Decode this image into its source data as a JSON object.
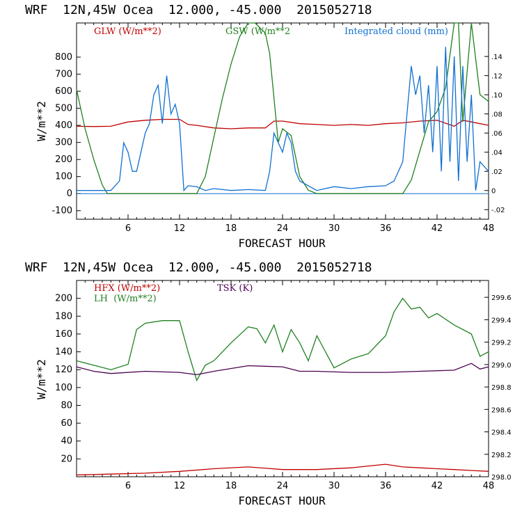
{
  "chart_data": [
    {
      "type": "line",
      "title": "WRF  12N,45W Ocea  12.000, -45.000  2015052718",
      "xlabel": "FORECAST HOUR",
      "ylabel": "W/m**2",
      "xlim": [
        0,
        48
      ],
      "ylim": [
        -150,
        1000
      ],
      "ylim_right": [
        -0.03,
        0.175
      ],
      "xticks": [
        "6",
        "12",
        "18",
        "24",
        "30",
        "36",
        "42",
        "48"
      ],
      "yticks": [
        "-100",
        "0",
        "100",
        "200",
        "300",
        "400",
        "500",
        "600",
        "700",
        "800"
      ],
      "yticks_right": [
        "-.02",
        "0",
        ".02",
        ".04",
        ".06",
        ".08",
        ".10",
        ".12",
        ".14"
      ],
      "series": [
        {
          "name": "GLW (W/m**2)",
          "color": "#c00000",
          "axis": "left",
          "x": [
            0,
            2,
            4,
            6,
            8,
            10,
            12,
            13,
            14,
            16,
            18,
            20,
            22,
            23,
            24,
            26,
            28,
            30,
            32,
            34,
            36,
            38,
            40,
            42,
            44,
            45,
            46,
            48
          ],
          "y": [
            395,
            393,
            395,
            420,
            430,
            435,
            435,
            405,
            400,
            385,
            380,
            385,
            385,
            425,
            425,
            410,
            405,
            400,
            405,
            400,
            410,
            415,
            425,
            430,
            395,
            430,
            420,
            400
          ]
        },
        {
          "name": "GSW (W/m**2",
          "color": "#208020",
          "axis": "left",
          "x": [
            0,
            1,
            2,
            3,
            3.6,
            14,
            15,
            16,
            17,
            18,
            19,
            20,
            20.8,
            22,
            22.5,
            23,
            23.5,
            24,
            25,
            26,
            27,
            28,
            38,
            39,
            40,
            41,
            42,
            43,
            44,
            44.5,
            45,
            46,
            47,
            48
          ],
          "y": [
            610,
            380,
            200,
            50,
            0,
            0,
            100,
            330,
            560,
            760,
            920,
            1000,
            1020,
            940,
            820,
            560,
            300,
            380,
            340,
            100,
            20,
            0,
            0,
            80,
            250,
            420,
            480,
            620,
            1000,
            1010,
            420,
            1000,
            580,
            540
          ]
        },
        {
          "name": "Integrated cloud (mm)",
          "color": "#1070d0",
          "axis": "right",
          "x": [
            0,
            4,
            5,
            5.5,
            6,
            6.5,
            7,
            7.5,
            8,
            8.5,
            9,
            9.5,
            10,
            10.5,
            11,
            11.5,
            12,
            12.5,
            13,
            14,
            15,
            16,
            18,
            20,
            22,
            22.5,
            23,
            23.5,
            24,
            24.5,
            25,
            25.5,
            26,
            27,
            28,
            30,
            32,
            34,
            36,
            37,
            38,
            38.5,
            39,
            39.5,
            40,
            40.5,
            41,
            41.5,
            42,
            42.5,
            43,
            43.5,
            44,
            44.5,
            45,
            45.5,
            46,
            46.5,
            47,
            48
          ],
          "y": [
            0,
            0,
            0.01,
            0.05,
            0.04,
            0.02,
            0.02,
            0.04,
            0.06,
            0.07,
            0.1,
            0.11,
            0.07,
            0.12,
            0.08,
            0.09,
            0.07,
            0.0,
            0.005,
            0.004,
            0.0,
            0.002,
            0.0,
            0.001,
            0.0,
            0.02,
            0.06,
            0.05,
            0.04,
            0.06,
            0.05,
            0.02,
            0.01,
            0.005,
            0.0,
            0.004,
            0.002,
            0.004,
            0.005,
            0.01,
            0.03,
            0.08,
            0.13,
            0.1,
            0.12,
            0.06,
            0.11,
            0.04,
            0.13,
            0.02,
            0.15,
            0.03,
            0.14,
            0.01,
            0.13,
            0.03,
            0.1,
            0.0,
            0.03,
            0.02
          ]
        }
      ]
    },
    {
      "type": "line",
      "title": "WRF  12N,45W Ocea  12.000, -45.000  2015052718",
      "xlabel": "FORECAST HOUR",
      "ylabel": "W/m**2",
      "xlim": [
        0,
        48
      ],
      "ylim": [
        0,
        220
      ],
      "ylim_right": [
        298.0,
        299.75
      ],
      "xticks": [
        "6",
        "12",
        "18",
        "24",
        "30",
        "36",
        "42",
        "48"
      ],
      "yticks": [
        "20",
        "40",
        "60",
        "80",
        "100",
        "120",
        "140",
        "160",
        "180",
        "200"
      ],
      "yticks_right": [
        "298.0",
        "298.2",
        "298.4",
        "298.6",
        "298.8",
        "299.0",
        "299.2",
        "299.4",
        "299.6"
      ],
      "series": [
        {
          "name": "HFX (W/m**2)",
          "color": "#c00000",
          "axis": "left",
          "x": [
            0,
            4,
            8,
            12,
            16,
            20,
            24,
            28,
            32,
            34,
            36,
            38,
            40,
            42,
            44,
            46,
            48
          ],
          "y": [
            2,
            3,
            4,
            6,
            9,
            11,
            8,
            8,
            10,
            12,
            14,
            11,
            10,
            9,
            8,
            7,
            6
          ]
        },
        {
          "name": "LH  (W/m**2)",
          "color": "#208020",
          "axis": "left",
          "x": [
            0,
            2,
            4,
            6,
            7,
            8,
            10,
            12,
            13,
            14,
            15,
            16,
            18,
            20,
            21,
            22,
            23,
            24,
            25,
            26,
            27,
            28,
            29,
            30,
            32,
            34,
            36,
            37,
            38,
            39,
            40,
            41,
            42,
            44,
            46,
            47,
            48
          ],
          "y": [
            130,
            125,
            120,
            126,
            165,
            172,
            175,
            175,
            140,
            108,
            125,
            130,
            150,
            168,
            166,
            150,
            170,
            140,
            165,
            150,
            130,
            158,
            140,
            122,
            132,
            138,
            158,
            185,
            200,
            188,
            190,
            178,
            183,
            170,
            160,
            135,
            140
          ]
        },
        {
          "name": "TSK (K)",
          "color": "#4a0050",
          "axis": "right",
          "x": [
            0,
            2,
            4,
            8,
            12,
            14,
            16,
            20,
            24,
            26,
            28,
            32,
            36,
            40,
            44,
            46,
            47,
            48
          ],
          "y": [
            298.98,
            298.94,
            298.92,
            298.94,
            298.93,
            298.91,
            298.94,
            298.99,
            298.98,
            298.94,
            298.94,
            298.93,
            298.93,
            298.94,
            298.95,
            299.01,
            298.96,
            298.98
          ]
        }
      ]
    }
  ]
}
